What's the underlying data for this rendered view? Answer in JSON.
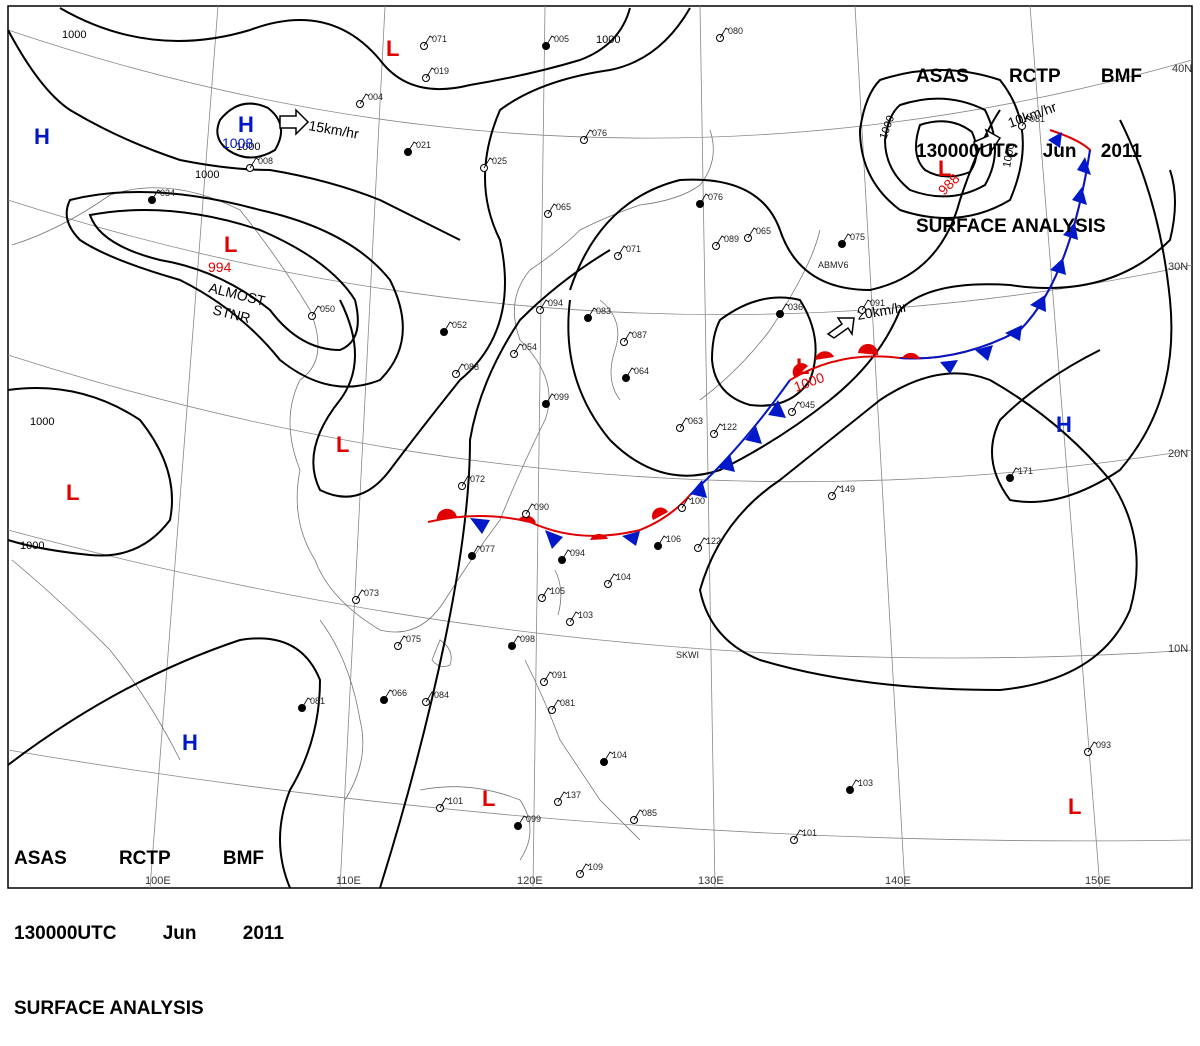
{
  "header": {
    "line1": [
      "ASAS",
      "RCTP",
      "BMF"
    ],
    "line2": [
      "130000UTC",
      "Jun",
      "2011"
    ],
    "line3": "SURFACE ANALYSIS"
  },
  "colors": {
    "low": "#e00000",
    "high": "#0018c8",
    "warm_front": "#e00000",
    "cold_front": "#0018c8"
  },
  "grid": {
    "lon_labels": [
      "100E",
      "110E",
      "120E",
      "130E",
      "140E",
      "150E"
    ],
    "lat_labels": [
      "40N",
      "30N",
      "20N",
      "10N"
    ]
  },
  "isobar_labels": [
    "1000",
    "1000",
    "1000",
    "1000",
    "1000",
    "1000",
    "1000",
    "1000"
  ],
  "pressure_centers": [
    {
      "type": "L",
      "value": ""
    },
    {
      "type": "H",
      "value": "1008"
    },
    {
      "type": "H",
      "value": ""
    },
    {
      "type": "L",
      "value": "994"
    },
    {
      "type": "L",
      "value": ""
    },
    {
      "type": "L",
      "value": ""
    },
    {
      "type": "L",
      "value": "988"
    },
    {
      "type": "L",
      "value": "1000"
    },
    {
      "type": "H",
      "value": ""
    },
    {
      "type": "H",
      "value": ""
    },
    {
      "type": "L",
      "value": ""
    },
    {
      "type": "L",
      "value": ""
    }
  ],
  "notes": {
    "almost": "ALMOST",
    "stnr": "STNR"
  },
  "motions": [
    "15km/hr",
    "10km/hr",
    "20km/hr"
  ],
  "stations": [
    "005",
    "019",
    "004",
    "021",
    "025",
    "076",
    "034",
    "065",
    "071",
    "083",
    "087",
    "094",
    "064",
    "063",
    "089",
    "075",
    "091",
    "088",
    "099",
    "072",
    "090",
    "094",
    "104",
    "103",
    "098",
    "075",
    "084",
    "081",
    "091",
    "081",
    "104",
    "085",
    "101",
    "099",
    "109",
    "101",
    "103",
    "122",
    "149",
    "171",
    "093",
    "122",
    "036",
    "045",
    "073",
    "077",
    "081",
    "065",
    "076",
    "008",
    "050",
    "052",
    "054",
    "105",
    "106",
    "100",
    "137",
    "066",
    "071",
    "080"
  ],
  "station_codes": [
    "ABMV6",
    "SKWI"
  ]
}
